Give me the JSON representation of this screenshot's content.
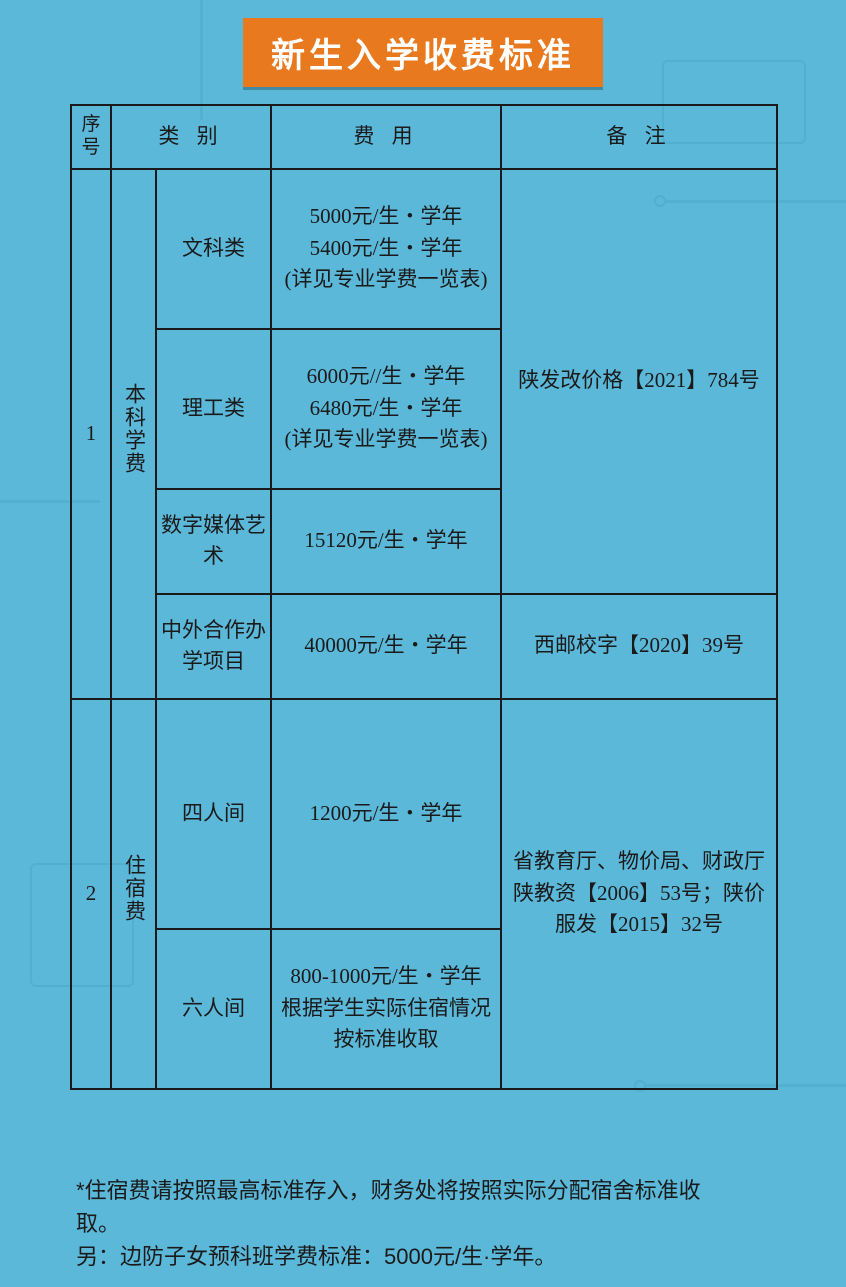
{
  "colors": {
    "background": "#5bb8d8",
    "banner_bg": "#e8791e",
    "banner_text": "#ffffff",
    "border": "#1a1a1a",
    "text": "#1a1a1a"
  },
  "title": "新生入学收费标准",
  "headers": {
    "seq": "序号",
    "category": "类  别",
    "fee": "费  用",
    "note": "备  注"
  },
  "rows": {
    "r1": {
      "seq": "1",
      "category_main": "本科学费",
      "sub": {
        "s1": {
          "name": "文科类",
          "fee": "5000元/生・学年\n5400元/生・学年\n(详见专业学费一览表)"
        },
        "s2": {
          "name": "理工类",
          "fee": "6000元//生・学年\n6480元/生・学年\n(详见专业学费一览表)"
        },
        "s3": {
          "name": "数字媒体艺术",
          "fee": "15120元/生・学年"
        },
        "s4": {
          "name": "中外合作办学项目",
          "fee": "40000元/生・学年"
        }
      },
      "note_a": "陕发改价格【2021】784号",
      "note_b": "西邮校字【2020】39号"
    },
    "r2": {
      "seq": "2",
      "category_main": "住宿费",
      "sub": {
        "s1": {
          "name": "四人间",
          "fee": "1200元/生・学年"
        },
        "s2": {
          "name": "六人间",
          "fee": "800-1000元/生・学年\n根据学生实际住宿情况按标准收取"
        }
      },
      "note": "省教育厅、物价局、财政厅陕教资【2006】53号；陕价服发【2015】32号"
    }
  },
  "footnote": {
    "line1": "*住宿费请按照最高标准存入，财务处将按照实际分配宿舍标准收取。",
    "line2": "另：边防子女预科班学费标准：5000元/生·学年。"
  }
}
